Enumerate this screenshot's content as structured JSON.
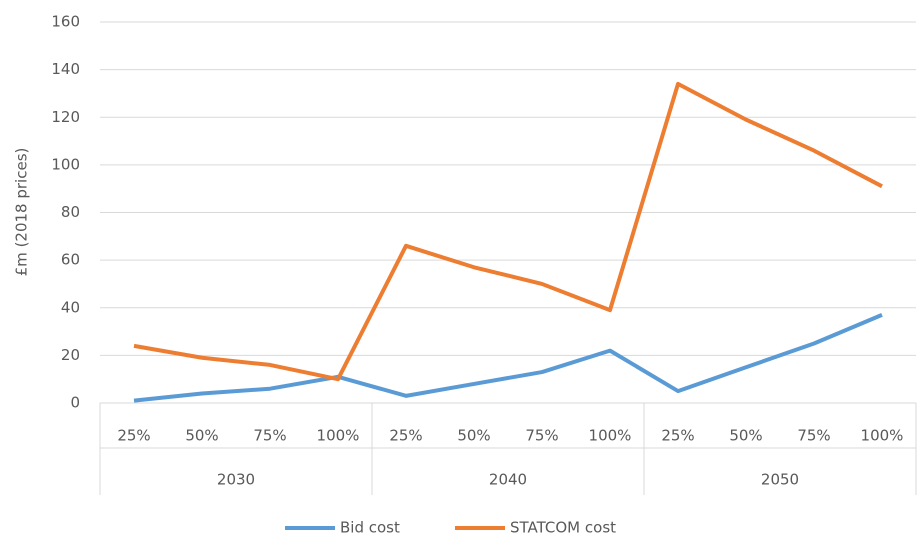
{
  "chart_data": {
    "type": "line",
    "y_label": "£m (2018 prices)",
    "categories": [
      "25%",
      "50%",
      "75%",
      "100%",
      "25%",
      "50%",
      "75%",
      "100%",
      "25%",
      "50%",
      "75%",
      "100%"
    ],
    "category_groups": [
      "2030",
      "2040",
      "2050"
    ],
    "series": [
      {
        "name": "Bid cost",
        "color": "#5b9bd5",
        "values": [
          1,
          4,
          6,
          11,
          3,
          8,
          13,
          22,
          5,
          15,
          25,
          37
        ]
      },
      {
        "name": "STATCOM cost",
        "color": "#ed7d31",
        "values": [
          24,
          19,
          16,
          10,
          66,
          57,
          50,
          39,
          134,
          119,
          106,
          91
        ]
      }
    ],
    "ylim": [
      0,
      160
    ],
    "yticks": [
      0,
      20,
      40,
      60,
      80,
      100,
      120,
      140,
      160
    ],
    "grid": true,
    "legend": "bottom"
  }
}
